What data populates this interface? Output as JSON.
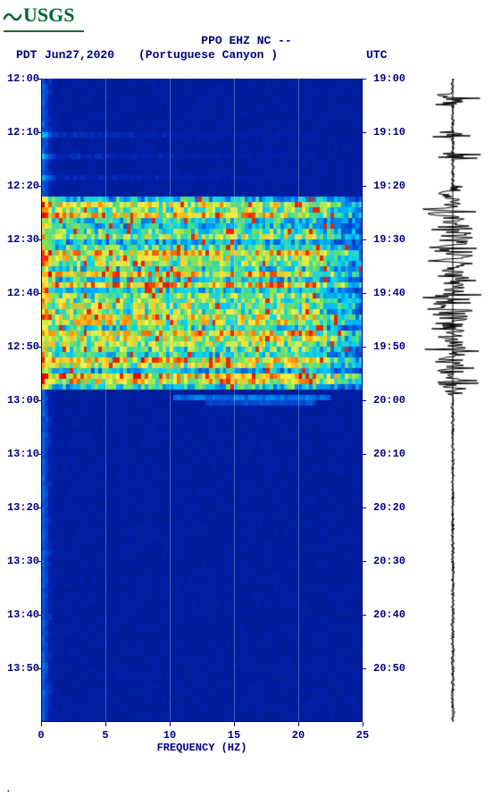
{
  "logo": {
    "text": "USGS",
    "color": "#006633"
  },
  "header": {
    "line1": "PPO EHZ NC --",
    "pdt": "PDT",
    "date": "Jun27,2020",
    "location": "(Portuguese Canyon )",
    "utc": "UTC"
  },
  "spectrogram": {
    "type": "spectrogram",
    "xlabel": "FREQUENCY (HZ)",
    "x_ticks": [
      0,
      5,
      10,
      15,
      20,
      25
    ],
    "x_range": [
      0,
      25
    ],
    "left_ticks": [
      "12:00",
      "12:10",
      "12:20",
      "12:30",
      "12:40",
      "12:50",
      "13:00",
      "13:10",
      "13:20",
      "13:30",
      "13:40",
      "13:50"
    ],
    "right_ticks": [
      "19:00",
      "19:10",
      "19:20",
      "19:30",
      "19:40",
      "19:50",
      "20:00",
      "20:10",
      "20:20",
      "20:30",
      "20:40",
      "20:50"
    ],
    "time_rows": 120,
    "colors": {
      "background": "#001a8c",
      "low": "#0020b0",
      "mid_blue": "#0060e0",
      "cyan": "#00d0ff",
      "green": "#70e060",
      "yellow": "#fff040",
      "orange": "#ff8000",
      "red": "#e00000",
      "grid": "#b0d8ff"
    },
    "active_band": {
      "start_row": 22,
      "end_row": 57,
      "noise_bias": 0.72
    },
    "quiet_bias": 0.08,
    "low_freq_edge_bias": 0.22
  },
  "seismogram": {
    "samples": 720,
    "amplitude_envelope": {
      "quiet": 2,
      "active_start_row": 20,
      "active_end_row": 58,
      "active_amp": 30,
      "spike_rows": [
        3,
        4,
        10,
        14,
        24,
        28,
        34,
        40,
        46,
        50,
        56
      ],
      "spike_amp": 34
    },
    "stroke_color": "#000000"
  },
  "footer": "."
}
